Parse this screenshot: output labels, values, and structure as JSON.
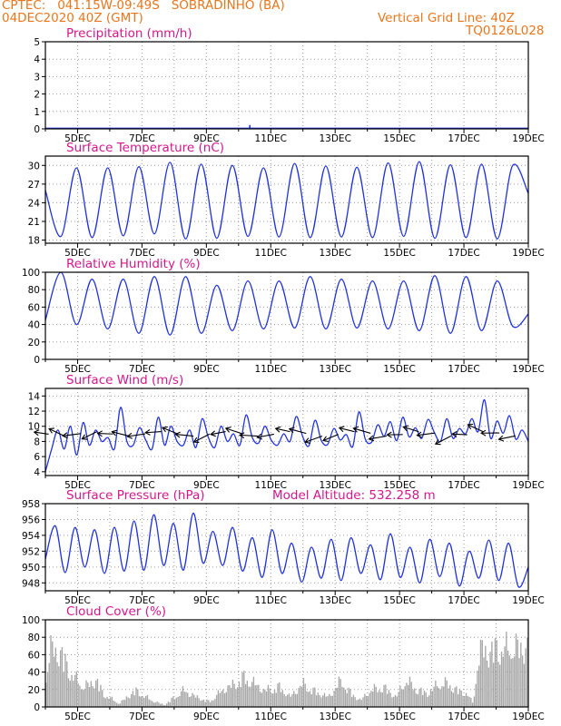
{
  "header": {
    "line1_left": "CPTEC:   041:15W-09:49S   SOBRADINHO (BA)",
    "line2_left": "04DEC2020 40Z (GMT)",
    "line2_right": "Vertical Grid Line: 40Z",
    "line3_right": "TQ0126L028"
  },
  "colors": {
    "series": "#2233dd",
    "title": "#d3178a",
    "header": "#e8761d",
    "cloud": "#a8a8a8",
    "grid": "#999999"
  },
  "chart_data": [
    {
      "id": "precip",
      "type": "bar",
      "title": "Precipitation (mm/h)",
      "x_tick_labels": [
        "5DEC",
        "7DEC",
        "9DEC",
        "11DEC",
        "13DEC",
        "15DEC",
        "17DEC",
        "19DEC"
      ],
      "x_range_days": [
        4,
        19
      ],
      "ylim": [
        0,
        5
      ],
      "yticks": [
        0,
        1,
        2,
        3,
        4,
        5
      ],
      "spikes": [
        {
          "day": 6.9,
          "value": 0.05
        },
        {
          "day": 10.35,
          "value": 0.22
        },
        {
          "day": 18.9,
          "value": 0.06
        }
      ]
    },
    {
      "id": "temp",
      "type": "line",
      "title": "Surface Temperature (nC)",
      "x_tick_labels": [
        "5DEC",
        "7DEC",
        "9DEC",
        "11DEC",
        "13DEC",
        "15DEC",
        "17DEC",
        "19DEC"
      ],
      "x_range_days": [
        4,
        19
      ],
      "ylim": [
        17.5,
        31.5
      ],
      "yticks": [
        18,
        21,
        24,
        27,
        30
      ],
      "values": [
        26,
        18.6,
        29.6,
        18.4,
        29.6,
        18.7,
        29.8,
        19.0,
        30.5,
        18.2,
        30.2,
        18.3,
        30.0,
        18.6,
        29.6,
        18.5,
        30.3,
        18.4,
        29.9,
        18.5,
        29.7,
        18.4,
        30.4,
        18.6,
        30.6,
        18.3,
        30.1,
        18.4,
        30.2,
        18.2,
        30.0,
        25.5
      ]
    },
    {
      "id": "rh",
      "type": "line",
      "title": "Relative Humidity (%)",
      "x_tick_labels": [
        "5DEC",
        "7DEC",
        "9DEC",
        "11DEC",
        "13DEC",
        "15DEC",
        "17DEC",
        "19DEC"
      ],
      "x_range_days": [
        4,
        19
      ],
      "ylim": [
        0,
        100
      ],
      "yticks": [
        0,
        20,
        40,
        60,
        80,
        100
      ],
      "values": [
        45,
        100,
        40,
        92,
        35,
        92,
        30,
        95,
        28,
        95,
        30,
        85,
        33,
        90,
        35,
        90,
        36,
        95,
        35,
        92,
        36,
        90,
        35,
        90,
        33,
        96,
        30,
        95,
        33,
        90,
        38,
        52
      ]
    },
    {
      "id": "wind",
      "type": "line",
      "title": "Surface Wind (m/s)",
      "x_tick_labels": [
        "5DEC",
        "7DEC",
        "9DEC",
        "11DEC",
        "13DEC",
        "15DEC",
        "17DEC",
        "19DEC"
      ],
      "x_range_days": [
        4,
        19
      ],
      "ylim": [
        3.5,
        15
      ],
      "yticks": [
        4,
        6,
        8,
        10,
        12,
        14
      ],
      "values": [
        4,
        7,
        9.5,
        7,
        10,
        6.2,
        10.5,
        7.5,
        9.5,
        8,
        8.5,
        7,
        12.5,
        8,
        7.5,
        9.8,
        8.2,
        7,
        11.2,
        7.5,
        10,
        8,
        7.5,
        9.5,
        7.2,
        11,
        8.5,
        7.2,
        10,
        8,
        9,
        7.5,
        11.5,
        8.5,
        7.8,
        10,
        8.2,
        7.5,
        9,
        8,
        11.3,
        8.7,
        7.4,
        10.8,
        8.1,
        7.6,
        9.7,
        8.2,
        8.9,
        7.3,
        11.9,
        8.3,
        7.9,
        10.2,
        8.7,
        10.6,
        8.1,
        11.2,
        8.6,
        9.8,
        8.4,
        10.9,
        9.2,
        8.0,
        11.0,
        8.4,
        9.7,
        9.0,
        11.0,
        9.3,
        13.5,
        8.4,
        10.7,
        9.1,
        11.4,
        8.3,
        9.5,
        8.0
      ]
    },
    {
      "id": "pres",
      "type": "line",
      "title": "Surface Pressure (hPa)",
      "annotation": "Model Altitude: 532.258 m",
      "x_tick_labels": [
        "5DEC",
        "7DEC",
        "9DEC",
        "11DEC",
        "13DEC",
        "15DEC",
        "17DEC",
        "19DEC"
      ],
      "x_range_days": [
        4,
        19
      ],
      "ylim": [
        947,
        958
      ],
      "yticks": [
        948,
        950,
        952,
        954,
        956,
        958
      ],
      "values": [
        951,
        955.2,
        949.3,
        955,
        950,
        954.7,
        949.2,
        955,
        949.5,
        955.8,
        949.6,
        956.6,
        950.2,
        955.5,
        949.6,
        956.8,
        950.5,
        954.5,
        950.2,
        955,
        949.5,
        953.7,
        948.7,
        954.7,
        949.2,
        953,
        948.1,
        952.5,
        948.6,
        953.5,
        948.3,
        953.7,
        949.2,
        952.8,
        948.4,
        954.2,
        948.7,
        952.5,
        948.0,
        953.5,
        948.8,
        953.0,
        947.6,
        952.0,
        948.6,
        953.4,
        948.3,
        953.0,
        947.5,
        950
      ]
    },
    {
      "id": "cloud",
      "type": "bar",
      "title": "Cloud Cover (%)",
      "x_tick_labels": [
        "5DEC",
        "7DEC",
        "9DEC",
        "11DEC",
        "13DEC",
        "15DEC",
        "17DEC",
        "19DEC"
      ],
      "x_range_days": [
        4,
        19
      ],
      "ylim": [
        0,
        100
      ],
      "yticks": [
        0,
        20,
        40,
        60,
        80,
        100
      ],
      "envelope": [
        [
          4.0,
          45
        ],
        [
          4.2,
          90
        ],
        [
          4.5,
          80
        ],
        [
          4.8,
          50
        ],
        [
          5.2,
          30
        ],
        [
          5.6,
          40
        ],
        [
          5.8,
          20
        ],
        [
          6.3,
          5
        ],
        [
          6.8,
          25
        ],
        [
          7.3,
          10
        ],
        [
          7.7,
          3
        ],
        [
          8.3,
          25
        ],
        [
          8.7,
          15
        ],
        [
          9.1,
          8
        ],
        [
          9.5,
          25
        ],
        [
          9.9,
          35
        ],
        [
          10.2,
          45
        ],
        [
          10.5,
          35
        ],
        [
          10.8,
          25
        ],
        [
          11.3,
          30
        ],
        [
          11.6,
          15
        ],
        [
          12.0,
          35
        ],
        [
          12.3,
          25
        ],
        [
          12.8,
          15
        ],
        [
          13.2,
          40
        ],
        [
          13.5,
          20
        ],
        [
          13.8,
          10
        ],
        [
          14.1,
          25
        ],
        [
          14.5,
          30
        ],
        [
          14.9,
          15
        ],
        [
          15.2,
          40
        ],
        [
          15.6,
          25
        ],
        [
          15.9,
          20
        ],
        [
          16.2,
          35
        ],
        [
          16.5,
          35
        ],
        [
          16.8,
          25
        ],
        [
          17.1,
          20
        ],
        [
          17.3,
          5
        ],
        [
          17.4,
          60
        ],
        [
          17.6,
          92
        ],
        [
          17.8,
          80
        ],
        [
          18.0,
          90
        ],
        [
          18.2,
          85
        ],
        [
          18.5,
          90
        ],
        [
          18.8,
          88
        ],
        [
          19.0,
          92
        ]
      ]
    }
  ]
}
